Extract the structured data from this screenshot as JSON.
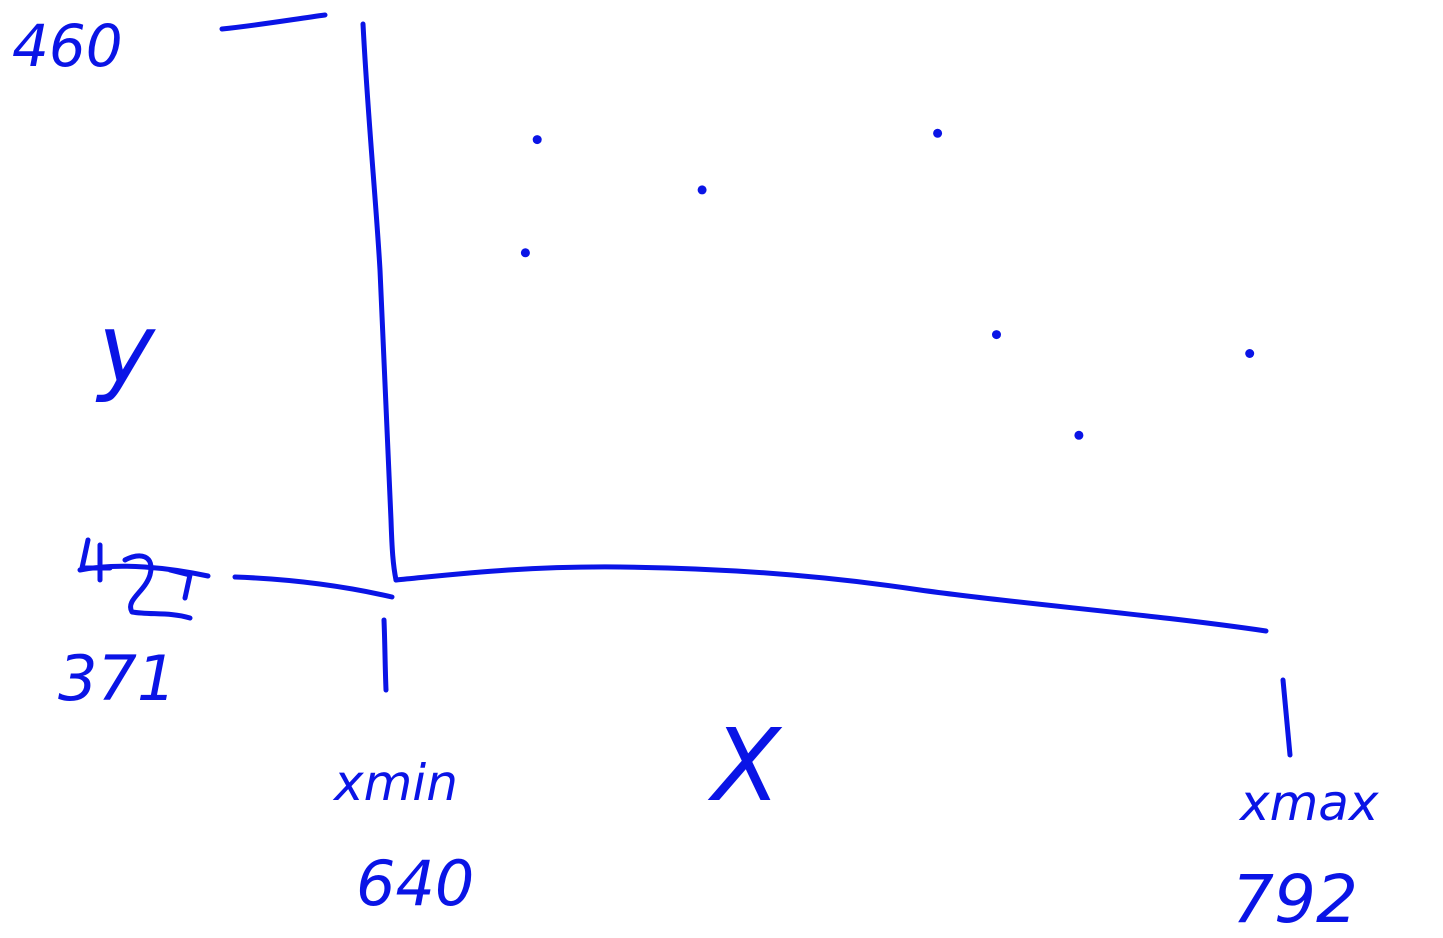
{
  "chart_data": {
    "type": "scatter",
    "title": "",
    "xlabel": "X",
    "ylabel": "y",
    "x_axis": {
      "min_name": "xmin",
      "max_name": "xmax",
      "min_value": "640",
      "max_value": "792",
      "xlim": [
        640,
        792
      ]
    },
    "y_axis": {
      "top_value": "460",
      "bottom_value": "371",
      "ylim": [
        371,
        460
      ]
    },
    "grid": false,
    "legend": "none",
    "points": [
      {
        "x": 665,
        "y": 441
      },
      {
        "x": 663,
        "y": 423
      },
      {
        "x": 693,
        "y": 433
      },
      {
        "x": 733,
        "y": 442
      },
      {
        "x": 743,
        "y": 410
      },
      {
        "x": 757,
        "y": 394
      },
      {
        "x": 786,
        "y": 407
      }
    ],
    "color": "#0a14e6"
  }
}
